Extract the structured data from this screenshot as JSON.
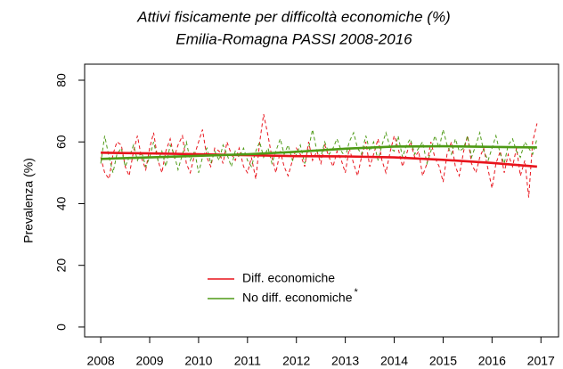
{
  "chart_data": {
    "type": "line",
    "title": "Attivi fisicamente per difficoltà economiche (%)",
    "subtitle": "Emilia-Romagna PASSI 2008-2016",
    "y_label": "Prevalenza (%)",
    "legend_note": "*",
    "xlim": [
      2007.67,
      2017.36
    ],
    "ylim": [
      -3.2,
      85.2
    ],
    "xticks": [
      2008,
      2009,
      2010,
      2011,
      2012,
      2013,
      2014,
      2015,
      2016,
      2017
    ],
    "yticks": [
      0,
      20,
      40,
      60,
      80
    ],
    "x": [
      2008,
      2008.08,
      2008.17,
      2008.25,
      2008.33,
      2008.42,
      2008.5,
      2008.58,
      2008.67,
      2008.75,
      2008.83,
      2008.92,
      2009,
      2009.08,
      2009.17,
      2009.25,
      2009.33,
      2009.42,
      2009.5,
      2009.58,
      2009.67,
      2009.75,
      2009.83,
      2009.92,
      2010,
      2010.08,
      2010.17,
      2010.25,
      2010.33,
      2010.42,
      2010.5,
      2010.58,
      2010.67,
      2010.75,
      2010.83,
      2010.92,
      2011,
      2011.08,
      2011.17,
      2011.25,
      2011.33,
      2011.42,
      2011.5,
      2011.58,
      2011.67,
      2011.75,
      2011.83,
      2011.92,
      2012,
      2012.08,
      2012.17,
      2012.25,
      2012.33,
      2012.42,
      2012.5,
      2012.58,
      2012.67,
      2012.75,
      2012.83,
      2012.92,
      2013,
      2013.08,
      2013.17,
      2013.25,
      2013.33,
      2013.42,
      2013.5,
      2013.58,
      2013.67,
      2013.75,
      2013.83,
      2013.92,
      2014,
      2014.08,
      2014.17,
      2014.25,
      2014.33,
      2014.42,
      2014.5,
      2014.58,
      2014.67,
      2014.75,
      2014.83,
      2014.92,
      2015,
      2015.08,
      2015.17,
      2015.25,
      2015.33,
      2015.42,
      2015.5,
      2015.58,
      2015.67,
      2015.75,
      2015.83,
      2015.92,
      2016,
      2016.08,
      2016.17,
      2016.25,
      2016.33,
      2016.42,
      2016.5,
      2016.58,
      2016.67,
      2016.75,
      2016.83,
      2016.92
    ],
    "legend": "bottom-center",
    "series": [
      {
        "name": "Diff. economiche",
        "color": "#e8141c",
        "values": [
          55,
          50,
          48,
          56,
          60,
          59,
          52,
          49,
          57,
          62,
          55,
          51,
          58,
          63,
          54,
          50,
          57,
          61,
          55,
          59,
          62,
          53,
          50,
          56,
          60,
          64,
          55,
          52,
          58,
          57,
          53,
          60,
          56,
          54,
          58,
          52,
          50,
          55,
          48,
          60,
          69,
          62,
          55,
          50,
          57,
          52,
          49,
          54,
          58,
          56,
          52,
          60,
          54,
          57,
          53,
          59,
          55,
          52,
          57,
          54,
          50,
          58,
          53,
          49,
          55,
          60,
          52,
          56,
          61,
          54,
          50,
          57,
          62,
          58,
          52,
          56,
          60,
          55,
          57,
          49,
          53,
          60,
          55,
          52,
          47,
          56,
          60,
          52,
          49,
          57,
          62,
          53,
          50,
          55,
          58,
          51,
          45,
          53,
          57,
          50,
          56,
          52,
          58,
          49,
          54,
          42,
          60,
          66
        ],
        "trend": {
          "x": [
            2008,
            2009,
            2010,
            2011,
            2012,
            2013,
            2014,
            2015,
            2016,
            2016.92
          ],
          "values": [
            56.5,
            56.3,
            56,
            55.7,
            55.4,
            55.3,
            55,
            54.2,
            53.2,
            52
          ]
        }
      },
      {
        "name": "No diff. economiche",
        "color": "#4e9a16",
        "values": [
          53,
          62,
          55,
          50,
          56,
          58,
          52,
          55,
          59,
          54,
          57,
          52,
          55,
          60,
          54,
          57,
          52,
          59,
          56,
          51,
          56,
          60,
          54,
          57,
          50,
          55,
          58,
          53,
          57,
          54,
          59,
          56,
          52,
          57,
          55,
          58,
          54,
          52,
          57,
          60,
          55,
          58,
          53,
          57,
          61,
          56,
          59,
          54,
          56,
          59,
          53,
          58,
          64,
          57,
          55,
          60,
          56,
          58,
          61,
          57,
          55,
          60,
          63,
          58,
          56,
          62,
          57,
          60,
          54,
          59,
          63,
          58,
          57,
          62,
          55,
          59,
          61,
          56,
          58,
          60,
          53,
          57,
          62,
          58,
          64,
          59,
          56,
          61,
          57,
          58,
          62,
          55,
          59,
          63,
          57,
          54,
          58,
          62,
          56,
          53,
          59,
          61,
          57,
          55,
          60,
          58,
          56,
          61
        ],
        "trend": {
          "x": [
            2008,
            2009,
            2010,
            2011,
            2012,
            2013,
            2014,
            2015,
            2016,
            2016.92
          ],
          "values": [
            54.5,
            55,
            55.5,
            56,
            56.8,
            57.8,
            58.5,
            58.6,
            58.4,
            58.2
          ]
        }
      }
    ]
  }
}
